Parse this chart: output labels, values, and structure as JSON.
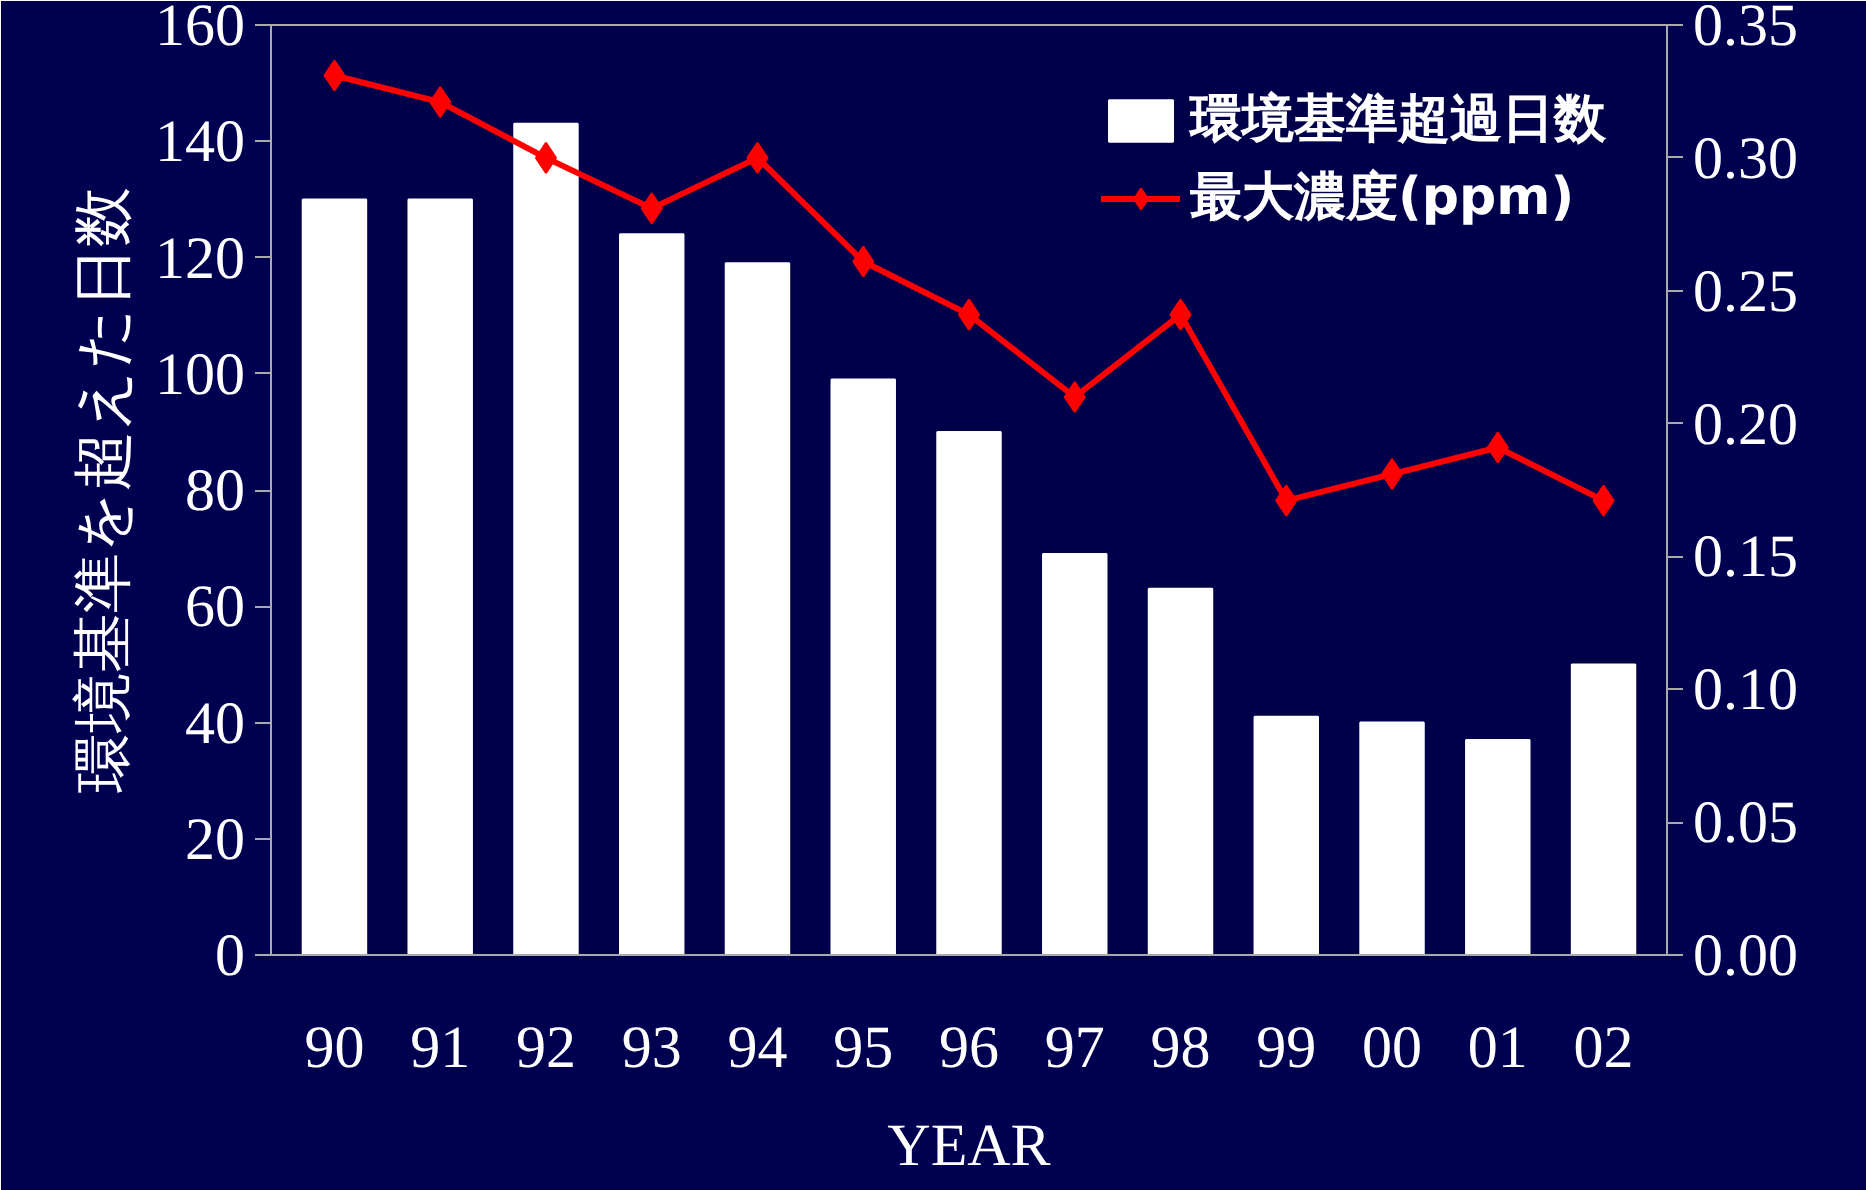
{
  "chart_data": {
    "type": "bar",
    "xlabel": "YEAR",
    "ylabel": "環境基準を超えた日数",
    "categories": [
      "90",
      "91",
      "92",
      "93",
      "94",
      "95",
      "96",
      "97",
      "98",
      "99",
      "00",
      "01",
      "02"
    ],
    "ylim": [
      0,
      160
    ],
    "yticks": [
      0,
      20,
      40,
      60,
      80,
      100,
      120,
      140,
      160
    ],
    "y2lim": [
      0,
      0.35
    ],
    "y2ticks": [
      {
        "value": 0,
        "label": "0.00"
      },
      {
        "value": 0.05,
        "label": "0.05"
      },
      {
        "value": 0.1,
        "label": "0.10"
      },
      {
        "value": 0.15,
        "label": "0.15"
      },
      {
        "value": 0.2,
        "label": "0.20"
      },
      {
        "value": 0.25,
        "label": "0.25"
      },
      {
        "value": 0.3,
        "label": "0.30"
      },
      {
        "value": 0.35,
        "label": "0.35"
      }
    ],
    "grid": false,
    "legend": "top right",
    "series": [
      {
        "name": "環境基準超過日数",
        "color": "#ffffff",
        "values": [
          130,
          130,
          143,
          124,
          119,
          99,
          90,
          69,
          63,
          41,
          40,
          37,
          50
        ]
      },
      {
        "name": "最大濃度(ppm)",
        "type": "line",
        "axis": "y2",
        "color": "#ff0000",
        "marker": "diamond",
        "values": [
          0.331,
          0.321,
          0.3,
          0.281,
          0.3,
          0.261,
          0.241,
          0.21,
          0.241,
          0.171,
          0.181,
          0.191,
          0.171
        ]
      }
    ]
  }
}
